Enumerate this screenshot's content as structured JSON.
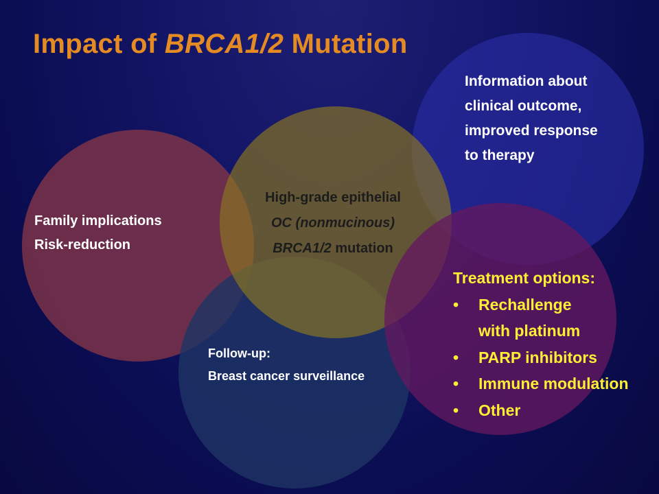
{
  "title": {
    "prefix": "Impact of ",
    "italic": "BRCA1/2",
    "suffix": " Mutation"
  },
  "colors": {
    "title": "#e58b24",
    "treatment_text": "#ffee33",
    "background": "#0b0d52"
  },
  "circles": {
    "clinical": {
      "lines": [
        "Information about",
        "clinical outcome,",
        "improved response",
        "to therapy"
      ]
    },
    "family": {
      "lines": [
        "Family implications",
        "Risk-reduction"
      ]
    },
    "center": {
      "line1": "High-grade epithelial",
      "line2": "OC (nonmucinous)",
      "line3_italic": "BRCA1/2",
      "line3_rest": " mutation"
    },
    "followup": {
      "lines": [
        "Follow-up:",
        "Breast cancer surveillance"
      ]
    },
    "treatment": {
      "heading": "Treatment options:",
      "bullet_glyph": "•",
      "items": [
        {
          "line1": "Rechallenge",
          "line2": "with platinum"
        },
        {
          "line1": "PARP inhibitors"
        },
        {
          "line1": "Immune modulation"
        },
        {
          "line1": "Other"
        }
      ]
    }
  }
}
